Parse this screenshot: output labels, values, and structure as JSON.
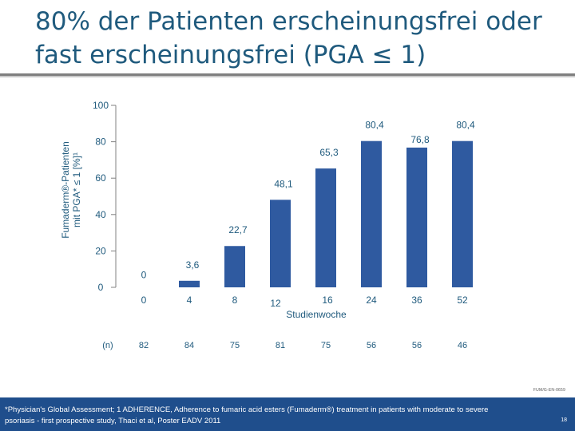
{
  "header": {
    "title_line1": "80% der Patienten erscheinungsfrei oder",
    "title_line2": "fast erscheinungsfrei (PGA ≤ 1)"
  },
  "chart_data": {
    "type": "bar",
    "ylabel_line1": "Fumaderm®-Patienten",
    "ylabel_line2": "mit PGA* ≤ 1 [%]¹",
    "xlabel": "Studienwoche",
    "ylim": [
      0,
      100
    ],
    "yticks": [
      "0",
      "20",
      "40",
      "60",
      "80",
      "100"
    ],
    "categories": [
      "0",
      "4",
      "8",
      "12",
      "16",
      "24",
      "36",
      "52"
    ],
    "values": [
      0,
      3.6,
      22.7,
      48.1,
      65.3,
      80.4,
      76.8,
      80.4
    ],
    "value_labels": [
      "0",
      "3,6",
      "22,7",
      "48,1",
      "65,3",
      "80,4",
      "76,8",
      "80,4"
    ],
    "n_label": "(n)",
    "n_values": [
      "82",
      "84",
      "75",
      "81",
      "75",
      "56",
      "56",
      "46"
    ],
    "bar_color": "#2f5aa0"
  },
  "footer": {
    "code": "FUM/G-EN-0659",
    "footnote_line1": "*Physician's Global Assessment; 1 ADHERENCE, Adherence to fumaric acid esters (Fumaderm®) treatment in patients with moderate to severe",
    "footnote_line2": "psoriasis - first prospective study, Thaci et al, Poster EADV 2011",
    "page_number": "18"
  }
}
